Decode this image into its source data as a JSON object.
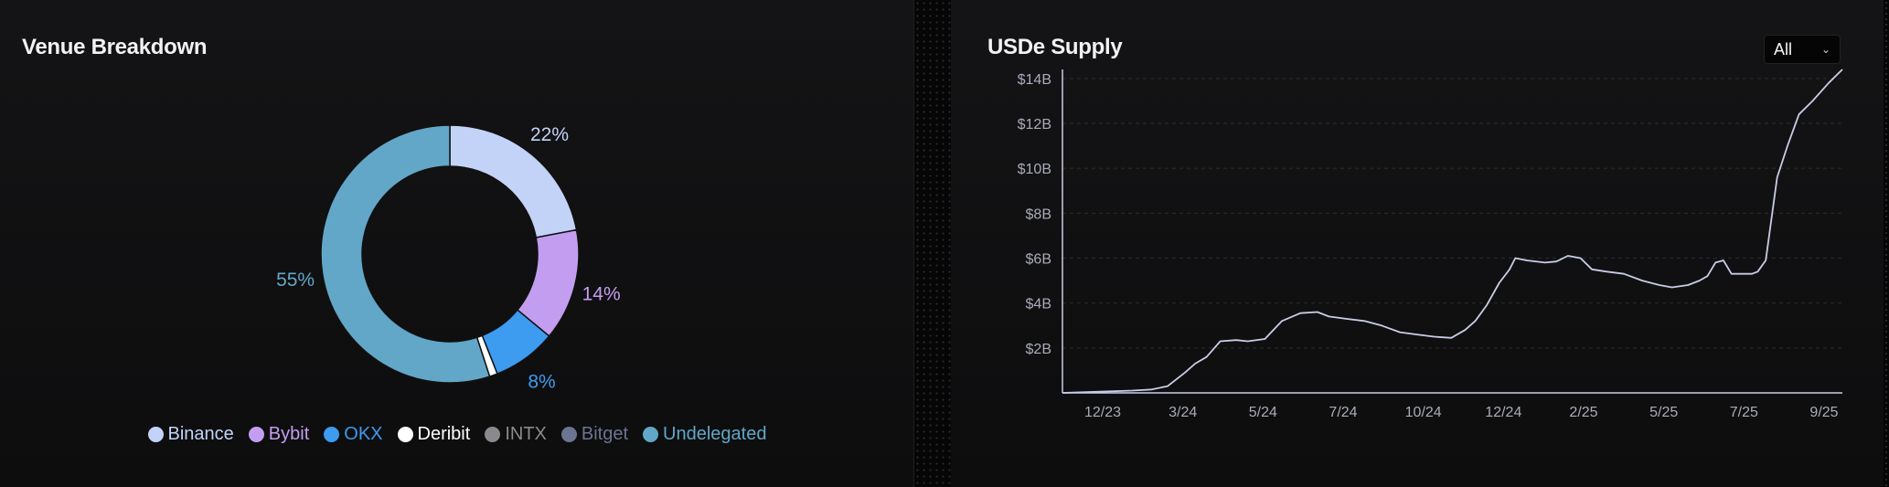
{
  "venue_breakdown": {
    "title": "Venue Breakdown",
    "legend": [
      {
        "label": "Binance",
        "color": "#c3d3f8"
      },
      {
        "label": "Bybit",
        "color": "#c39ef0"
      },
      {
        "label": "OKX",
        "color": "#3d9bf0"
      },
      {
        "label": "Deribit",
        "color": "#ffffff"
      },
      {
        "label": "INTX",
        "color": "#8a8a8e"
      },
      {
        "label": "Bitget",
        "color": "#6b7590"
      },
      {
        "label": "Undelegated",
        "color": "#62a7c8"
      }
    ]
  },
  "usde_supply": {
    "title": "USDe Supply",
    "range_selector": {
      "value": "All",
      "icon": "chevron-down-icon"
    },
    "line_color": "#c9cde6"
  },
  "chart_data": [
    {
      "type": "pie",
      "title": "Venue Breakdown",
      "labels": [
        "Binance",
        "Bybit",
        "OKX",
        "Deribit",
        "INTX",
        "Bitget",
        "Undelegated"
      ],
      "values": [
        22,
        14,
        8,
        1,
        0,
        0,
        55
      ],
      "value_labels": [
        "22%",
        "14%",
        "8%",
        "",
        "",
        "",
        "55%"
      ],
      "colors": [
        "#c3d3f8",
        "#c39ef0",
        "#3d9bf0",
        "#ffffff",
        "#8a8a8e",
        "#6b7590",
        "#62a7c8"
      ],
      "donut": true,
      "legend_position": "bottom"
    },
    {
      "type": "line",
      "title": "USDe Supply",
      "xlabel": "",
      "ylabel": "",
      "x_ticks": [
        "12/23",
        "3/24",
        "5/24",
        "7/24",
        "10/24",
        "12/24",
        "2/25",
        "5/25",
        "7/25",
        "9/25"
      ],
      "y_ticks": [
        "$2B",
        "$4B",
        "$6B",
        "$8B",
        "$10B",
        "$12B",
        "$14B"
      ],
      "ylim": [
        0,
        14.4
      ],
      "xlim": [
        "2023-11-15",
        "2025-09-27"
      ],
      "grid": true,
      "series": [
        {
          "x": [
            "2023-11-15",
            "2023-12-15",
            "2024-01-15",
            "2024-02-01",
            "2024-02-15",
            "2024-03-01",
            "2024-03-10",
            "2024-03-20",
            "2024-04-01",
            "2024-04-15",
            "2024-04-25",
            "2024-05-10",
            "2024-05-25",
            "2024-06-10",
            "2024-06-25",
            "2024-07-05",
            "2024-07-20",
            "2024-08-05",
            "2024-08-20",
            "2024-09-05",
            "2024-09-20",
            "2024-10-05",
            "2024-10-20",
            "2024-11-01",
            "2024-11-10",
            "2024-11-20",
            "2024-12-01",
            "2024-12-10",
            "2024-12-15",
            "2024-12-25",
            "2025-01-10",
            "2025-01-20",
            "2025-01-30",
            "2025-02-10",
            "2025-02-20",
            "2025-03-05",
            "2025-03-20",
            "2025-04-05",
            "2025-04-20",
            "2025-05-01",
            "2025-05-15",
            "2025-05-25",
            "2025-06-01",
            "2025-06-08",
            "2025-06-15",
            "2025-06-22",
            "2025-07-10",
            "2025-07-15",
            "2025-07-22",
            "2025-08-01",
            "2025-08-10",
            "2025-08-20",
            "2025-09-01",
            "2025-09-15",
            "2025-09-27"
          ],
          "y": [
            0,
            0.05,
            0.1,
            0.15,
            0.3,
            0.9,
            1.3,
            1.6,
            2.3,
            2.35,
            2.3,
            2.4,
            3.2,
            3.55,
            3.6,
            3.4,
            3.3,
            3.2,
            3.0,
            2.7,
            2.6,
            2.5,
            2.45,
            2.8,
            3.2,
            3.9,
            4.9,
            5.5,
            6.0,
            5.9,
            5.8,
            5.85,
            6.1,
            6.0,
            5.5,
            5.4,
            5.3,
            5.0,
            4.8,
            4.7,
            4.8,
            5.0,
            5.2,
            5.8,
            5.9,
            5.3,
            5.3,
            5.4,
            5.9,
            9.6,
            11.0,
            12.4,
            13.0,
            13.8,
            14.4
          ]
        }
      ]
    }
  ]
}
